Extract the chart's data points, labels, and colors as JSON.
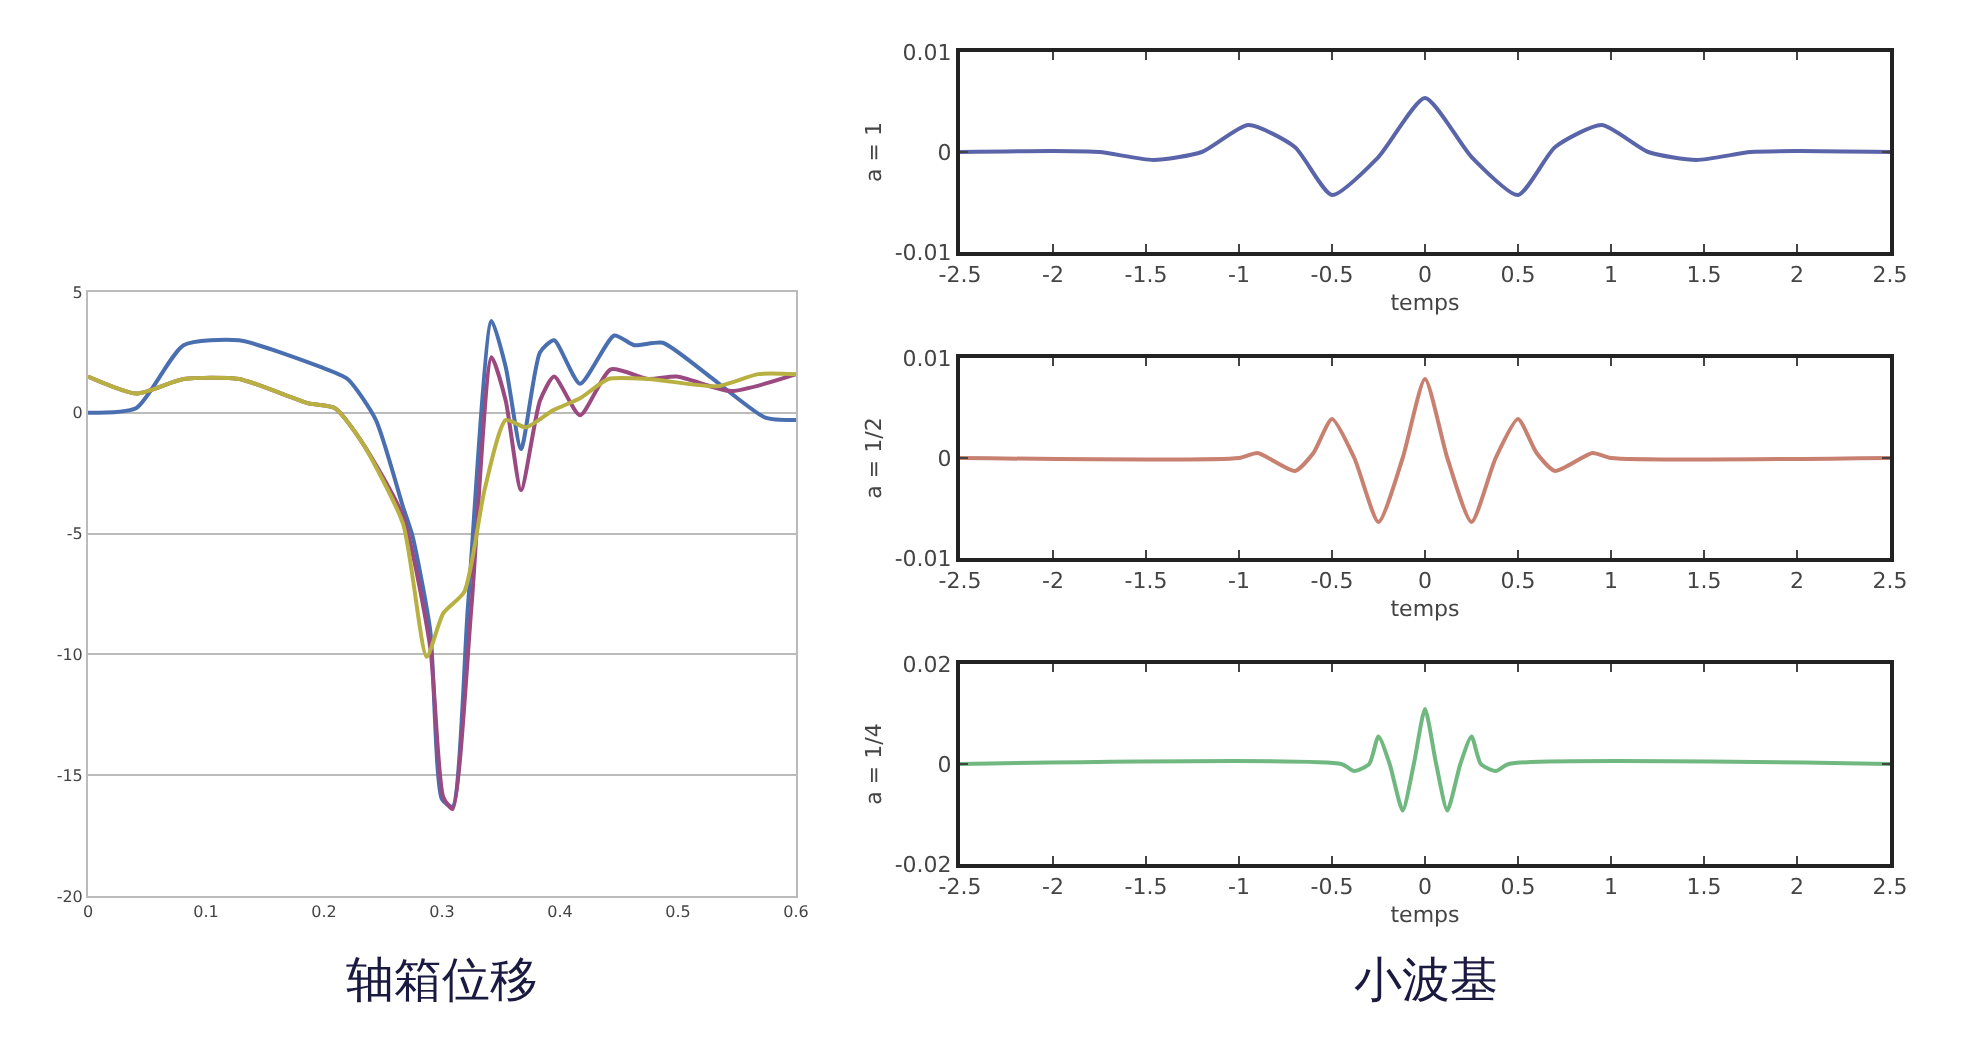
{
  "chart_data": [
    {
      "type": "line",
      "xlim": [
        0,
        0.6
      ],
      "xticks": [
        0,
        0.1,
        0.2,
        0.3,
        0.4,
        0.5,
        0.6
      ],
      "ylim": [
        -20,
        5
      ],
      "yticks": [
        5,
        0,
        -5,
        -10,
        -15,
        -20
      ],
      "grid": "y",
      "annotations": [
        "轴箱位移"
      ],
      "series": [
        {
          "color": "#4a6fb0",
          "x": [
            0,
            0.041,
            0.081,
            0.128,
            0.197,
            0.22,
            0.244,
            0.267,
            0.275,
            0.29,
            0.3,
            0.309,
            0.322,
            0.342,
            0.354,
            0.367,
            0.383,
            0.395,
            0.417,
            0.446,
            0.463,
            0.487,
            0.527,
            0.574,
            0.6
          ],
          "values": [
            0,
            0.2,
            2.8,
            3.0,
            1.9,
            1.4,
            -0.3,
            -3.9,
            -5.1,
            -9,
            -16,
            -16.3,
            -8,
            3.8,
            1.9,
            -1.5,
            2.5,
            3.0,
            1.2,
            3.2,
            2.8,
            2.9,
            1.5,
            -0.2,
            -0.3
          ]
        },
        {
          "color": "#9a4a80",
          "x": [
            0,
            0.041,
            0.081,
            0.128,
            0.186,
            0.209,
            0.232,
            0.267,
            0.29,
            0.301,
            0.309,
            0.325,
            0.342,
            0.354,
            0.367,
            0.383,
            0.395,
            0.417,
            0.443,
            0.475,
            0.499,
            0.545,
            0.6
          ],
          "values": [
            1.5,
            0.8,
            1.4,
            1.4,
            0.4,
            0.2,
            -1.2,
            -4.3,
            -9.7,
            -15.9,
            -16.4,
            -8,
            2.3,
            0.5,
            -3.2,
            0.5,
            1.5,
            -0.1,
            1.8,
            1.4,
            1.5,
            0.9,
            1.6
          ]
        },
        {
          "color": "#b8b040",
          "x": [
            0,
            0.041,
            0.081,
            0.128,
            0.186,
            0.209,
            0.232,
            0.267,
            0.287,
            0.301,
            0.319,
            0.336,
            0.354,
            0.371,
            0.394,
            0.417,
            0.441,
            0.475,
            0.533,
            0.568,
            0.6
          ],
          "values": [
            1.5,
            0.8,
            1.4,
            1.4,
            0.4,
            0.2,
            -1.2,
            -4.6,
            -10.1,
            -8.3,
            -7.4,
            -3.2,
            -0.3,
            -0.6,
            0.1,
            0.6,
            1.4,
            1.4,
            1.1,
            1.6,
            1.6
          ]
        }
      ]
    },
    {
      "type": "line",
      "xlabel": "temps",
      "ylabel": "a = 1",
      "xlim": [
        -2.5,
        2.5
      ],
      "xticks": [
        -2.5,
        -2,
        -1.5,
        -1,
        -0.5,
        0,
        0.5,
        1,
        1.5,
        2,
        2.5
      ],
      "ylim": [
        -0.01,
        0.01
      ],
      "yticks": [
        -0.01,
        0,
        0.01
      ],
      "grid": false,
      "series": [
        {
          "color": "#5a64a8",
          "x": [
            -2.5,
            -2,
            -1.75,
            -1.46,
            -1.2,
            -0.95,
            -0.7,
            -0.5,
            -0.25,
            0,
            0.25,
            0.5,
            0.7,
            0.95,
            1.2,
            1.46,
            1.75,
            2,
            2.5
          ],
          "values": [
            0,
            0.0001,
            0,
            -0.0008,
            0,
            0.0027,
            0.0005,
            -0.0043,
            -0.0005,
            0.0054,
            -0.0005,
            -0.0043,
            0.0005,
            0.0027,
            0,
            -0.0008,
            0,
            0.0001,
            0
          ]
        }
      ]
    },
    {
      "type": "line",
      "xlabel": "temps",
      "ylabel": "a = 1/2",
      "xlim": [
        -2.5,
        2.5
      ],
      "xticks": [
        -2.5,
        -2,
        -1.5,
        -1,
        -0.5,
        0,
        0.5,
        1,
        1.5,
        2,
        2.5
      ],
      "ylim": [
        -0.01,
        0.01
      ],
      "yticks": [
        -0.01,
        0,
        0.01
      ],
      "grid": false,
      "series": [
        {
          "color": "#c88070",
          "x": [
            -2.5,
            -1,
            -0.9,
            -0.7,
            -0.6,
            -0.5,
            -0.38,
            -0.25,
            -0.12,
            0,
            0.12,
            0.25,
            0.38,
            0.5,
            0.6,
            0.7,
            0.9,
            1,
            2.5
          ],
          "values": [
            0,
            0,
            0.0005,
            -0.0013,
            0.0005,
            0.0039,
            0,
            -0.0064,
            0,
            0.0079,
            0,
            -0.0064,
            0,
            0.0039,
            0.0005,
            -0.0013,
            0.0005,
            0,
            0
          ]
        }
      ]
    },
    {
      "type": "line",
      "xlabel": "temps",
      "ylabel": "a = 1/4",
      "xlim": [
        -2.5,
        2.5
      ],
      "xticks": [
        -2.5,
        -2,
        -1.5,
        -1,
        -0.5,
        0,
        0.5,
        1,
        1.5,
        2,
        2.5
      ],
      "ylim": [
        -0.02,
        0.02
      ],
      "yticks": [
        -0.02,
        0,
        0.02
      ],
      "grid": false,
      "annotations": [
        "小波基"
      ],
      "series": [
        {
          "color": "#70b880",
          "x": [
            -2.5,
            -0.45,
            -0.38,
            -0.3,
            -0.25,
            -0.19,
            -0.12,
            -0.06,
            0,
            0.06,
            0.12,
            0.19,
            0.25,
            0.3,
            0.38,
            0.45,
            2.5
          ],
          "values": [
            0,
            0,
            -0.0014,
            0,
            0.0055,
            0,
            -0.0093,
            0,
            0.011,
            0,
            -0.0093,
            0,
            0.0055,
            0,
            -0.0014,
            0,
            0
          ]
        }
      ]
    }
  ]
}
